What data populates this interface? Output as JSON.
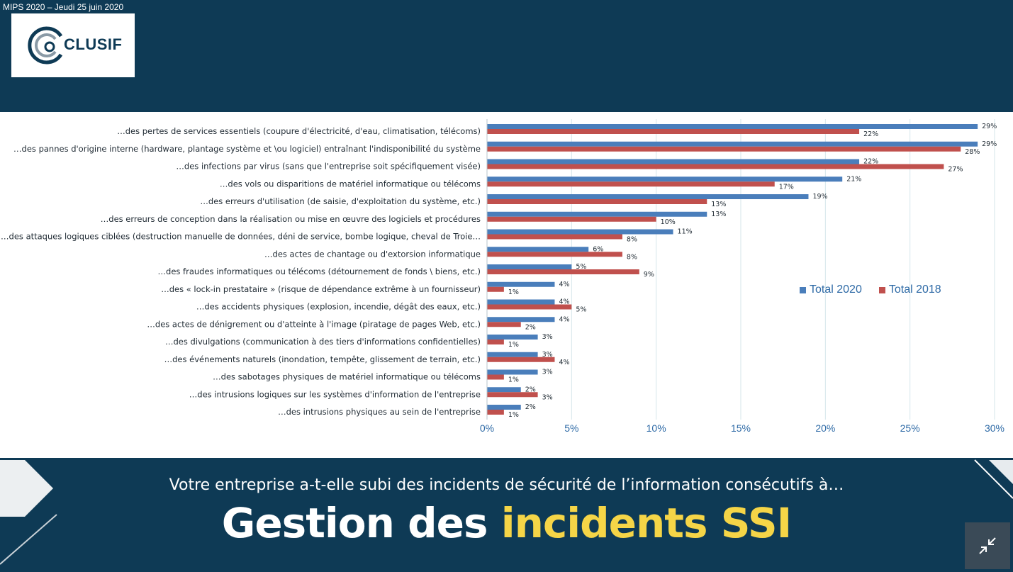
{
  "header": {
    "event": "MIPS 2020 – Jeudi  25 juin 2020",
    "logo_text": "CLUSIF"
  },
  "footer": {
    "subtitle": "Votre entreprise a-t-elle subi des incidents de sécurité de l’information consécutifs à…",
    "title_part1": "Gestion des ",
    "title_part2": "incidents SSI"
  },
  "colors": {
    "series_2020": "#4a7ebb",
    "series_2018": "#c0504d",
    "background_dark": "#0e3a55",
    "title_accent": "#f5d547"
  },
  "icons": {
    "collapse": "collapse-arrows-icon"
  },
  "chart_data": {
    "type": "bar",
    "orientation": "horizontal",
    "categories": [
      "…des pertes de services essentiels (coupure d'électricité, d'eau, climatisation, télécoms)",
      "…des pannes d'origine interne (hardware, plantage système et \\ou logiciel) entraînant l'indisponibilité du système",
      "…des infections par virus (sans que l'entreprise soit spécifiquement visée)",
      "…des vols ou disparitions de matériel informatique ou télécoms",
      "…des erreurs d'utilisation (de saisie, d'exploitation du système, etc.)",
      "…des erreurs de conception dans la réalisation ou mise en œuvre des logiciels et procédures",
      "…des attaques logiques ciblées (destruction manuelle de données, déni de service, bombe logique, cheval de Troie…",
      "…des actes de chantage ou d'extorsion informatique",
      "…des fraudes informatiques ou télécoms (détournement de fonds \\ biens, etc.)",
      "…des « lock-in prestataire » (risque de dépendance extrême à un fournisseur)",
      "…des accidents physiques (explosion, incendie, dégât des eaux, etc.)",
      "…des actes de dénigrement ou d'atteinte à l'image (piratage de pages Web, etc.)",
      "…des divulgations (communication à des tiers d'informations confidentielles)",
      "…des événements naturels (inondation, tempête, glissement de terrain, etc.)",
      "…des sabotages physiques de matériel informatique ou télécoms",
      "…des intrusions logiques sur les systèmes d'information de l'entreprise",
      "…des intrusions physiques au sein de l'entreprise"
    ],
    "series": [
      {
        "name": "Total 2020",
        "values": [
          29,
          29,
          22,
          21,
          19,
          13,
          11,
          6,
          5,
          4,
          4,
          4,
          3,
          3,
          3,
          2,
          2
        ]
      },
      {
        "name": "Total 2018",
        "values": [
          22,
          28,
          27,
          17,
          13,
          10,
          8,
          8,
          9,
          1,
          5,
          2,
          1,
          4,
          1,
          3,
          1
        ]
      }
    ],
    "value_labels_2020": [
      "29%",
      "29%",
      "22%",
      "21%",
      "19%",
      "13%",
      "11%",
      "6%",
      "5%",
      "4%",
      "4%",
      "4%",
      "3%",
      "3%",
      "3%",
      "2%",
      "2%"
    ],
    "value_labels_2018": [
      "22%",
      "28%",
      "27%",
      "17%",
      "13%",
      "10%",
      "8%",
      "8%",
      "9%",
      "1%",
      "5%",
      "2%",
      "1%",
      "4%",
      "1%",
      "3%",
      "1%"
    ],
    "xticks": [
      0,
      5,
      10,
      15,
      20,
      25,
      30
    ],
    "xtick_labels": [
      "0%",
      "5%",
      "10%",
      "15%",
      "20%",
      "25%",
      "30%"
    ],
    "xlim": [
      0,
      30
    ],
    "grid": true,
    "legend_position": "right"
  }
}
